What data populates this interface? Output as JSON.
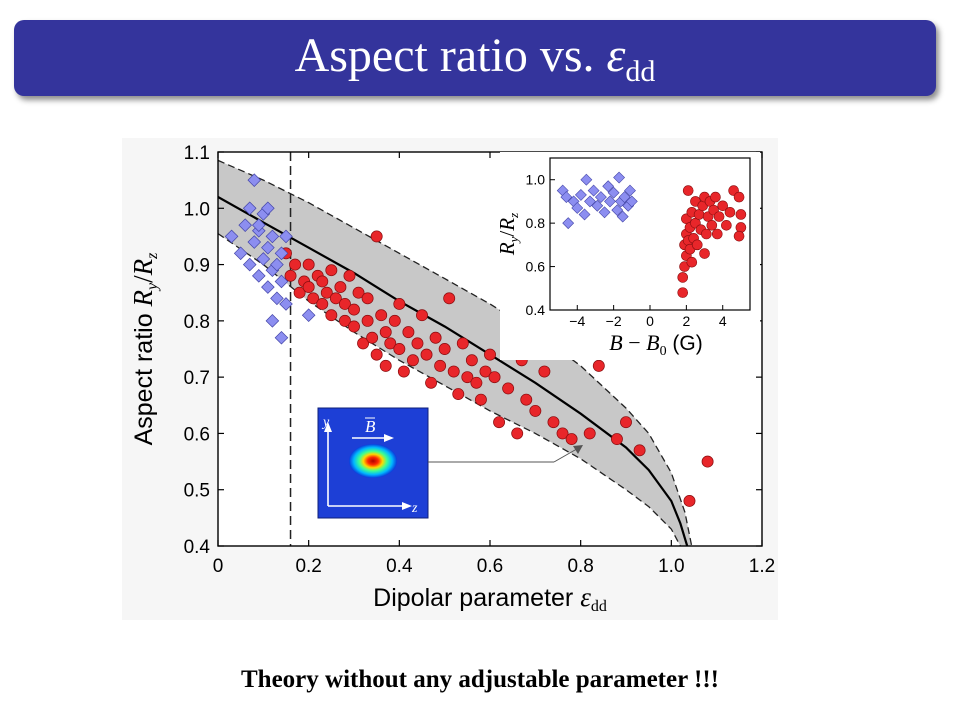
{
  "slide": {
    "title_text": "Aspect ratio vs. ",
    "title_symbol": "ε",
    "title_subscript": "dd",
    "footer": "Theory without any adjustable parameter !!!"
  },
  "colors": {
    "title_bar": "#34349c",
    "red_points": "#e8262a",
    "blue_points": "#8c8ef0",
    "band": "#c8c8c8",
    "theory_line": "#000000"
  },
  "chart_data": [
    {
      "type": "scatter",
      "xlabel_text": "Dipolar parameter ",
      "xlabel_symbol": "ε",
      "xlabel_sub": "dd",
      "ylabel_text": "Aspect ratio ",
      "ylabel_symbol": "R",
      "ylabel_sub1": "y",
      "ylabel_sep": "/",
      "ylabel_symbol2": "R",
      "ylabel_sub2": "z",
      "xlim": [
        0,
        1.2
      ],
      "ylim": [
        0.4,
        1.1
      ],
      "xticks": [
        "0",
        "0.2",
        "0.4",
        "0.6",
        "0.8",
        "1.0",
        "1.2"
      ],
      "yticks": [
        "0.4",
        "0.5",
        "0.6",
        "0.7",
        "0.8",
        "0.9",
        "1.0",
        "1.1"
      ],
      "vline_x": 0.16,
      "theory_curve": [
        [
          0,
          1.02
        ],
        [
          0.1,
          0.975
        ],
        [
          0.2,
          0.93
        ],
        [
          0.3,
          0.885
        ],
        [
          0.4,
          0.835
        ],
        [
          0.5,
          0.79
        ],
        [
          0.6,
          0.74
        ],
        [
          0.7,
          0.69
        ],
        [
          0.8,
          0.635
        ],
        [
          0.9,
          0.575
        ],
        [
          0.95,
          0.535
        ],
        [
          1.0,
          0.48
        ],
        [
          1.02,
          0.44
        ],
        [
          1.035,
          0.4
        ]
      ],
      "band_upper": [
        [
          0,
          1.085
        ],
        [
          0.1,
          1.05
        ],
        [
          0.2,
          1.01
        ],
        [
          0.3,
          0.965
        ],
        [
          0.4,
          0.92
        ],
        [
          0.5,
          0.875
        ],
        [
          0.6,
          0.83
        ],
        [
          0.7,
          0.78
        ],
        [
          0.8,
          0.72
        ],
        [
          0.9,
          0.645
        ],
        [
          0.95,
          0.6
        ],
        [
          1.0,
          0.53
        ],
        [
          1.03,
          0.46
        ],
        [
          1.045,
          0.4
        ]
      ],
      "band_lower": [
        [
          0,
          0.955
        ],
        [
          0.1,
          0.9
        ],
        [
          0.2,
          0.835
        ],
        [
          0.3,
          0.78
        ],
        [
          0.4,
          0.73
        ],
        [
          0.5,
          0.685
        ],
        [
          0.6,
          0.64
        ],
        [
          0.7,
          0.6
        ],
        [
          0.8,
          0.555
        ],
        [
          0.9,
          0.5
        ],
        [
          0.95,
          0.47
        ],
        [
          1.0,
          0.43
        ],
        [
          1.02,
          0.4
        ]
      ],
      "series": [
        {
          "marker": "circle",
          "points": [
            [
              0.15,
              0.92
            ],
            [
              0.16,
              0.88
            ],
            [
              0.17,
              0.9
            ],
            [
              0.18,
              0.85
            ],
            [
              0.19,
              0.87
            ],
            [
              0.2,
              0.86
            ],
            [
              0.2,
              0.9
            ],
            [
              0.21,
              0.84
            ],
            [
              0.22,
              0.88
            ],
            [
              0.23,
              0.83
            ],
            [
              0.23,
              0.87
            ],
            [
              0.24,
              0.85
            ],
            [
              0.25,
              0.81
            ],
            [
              0.25,
              0.89
            ],
            [
              0.26,
              0.84
            ],
            [
              0.27,
              0.86
            ],
            [
              0.28,
              0.8
            ],
            [
              0.28,
              0.83
            ],
            [
              0.29,
              0.88
            ],
            [
              0.3,
              0.82
            ],
            [
              0.3,
              0.79
            ],
            [
              0.31,
              0.85
            ],
            [
              0.32,
              0.76
            ],
            [
              0.33,
              0.8
            ],
            [
              0.33,
              0.84
            ],
            [
              0.34,
              0.77
            ],
            [
              0.35,
              0.95
            ],
            [
              0.35,
              0.74
            ],
            [
              0.36,
              0.81
            ],
            [
              0.37,
              0.78
            ],
            [
              0.37,
              0.72
            ],
            [
              0.38,
              0.76
            ],
            [
              0.39,
              0.8
            ],
            [
              0.4,
              0.83
            ],
            [
              0.4,
              0.75
            ],
            [
              0.41,
              0.71
            ],
            [
              0.42,
              0.78
            ],
            [
              0.43,
              0.73
            ],
            [
              0.44,
              0.76
            ],
            [
              0.45,
              0.81
            ],
            [
              0.46,
              0.74
            ],
            [
              0.47,
              0.69
            ],
            [
              0.48,
              0.77
            ],
            [
              0.49,
              0.72
            ],
            [
              0.5,
              0.75
            ],
            [
              0.51,
              0.84
            ],
            [
              0.52,
              0.71
            ],
            [
              0.53,
              0.67
            ],
            [
              0.54,
              0.76
            ],
            [
              0.55,
              0.7
            ],
            [
              0.56,
              0.73
            ],
            [
              0.57,
              0.69
            ],
            [
              0.58,
              0.66
            ],
            [
              0.59,
              0.71
            ],
            [
              0.6,
              0.74
            ],
            [
              0.61,
              0.7
            ],
            [
              0.62,
              0.62
            ],
            [
              0.64,
              0.68
            ],
            [
              0.66,
              0.6
            ],
            [
              0.67,
              0.73
            ],
            [
              0.68,
              0.66
            ],
            [
              0.7,
              0.64
            ],
            [
              0.72,
              0.71
            ],
            [
              0.74,
              0.62
            ],
            [
              0.76,
              0.6
            ],
            [
              0.78,
              0.59
            ],
            [
              0.82,
              0.6
            ],
            [
              0.84,
              0.72
            ],
            [
              0.88,
              0.59
            ],
            [
              0.9,
              0.62
            ],
            [
              0.93,
              0.57
            ],
            [
              1.04,
              0.48
            ],
            [
              1.08,
              0.55
            ]
          ]
        },
        {
          "marker": "diamond",
          "points": [
            [
              0.03,
              0.95
            ],
            [
              0.05,
              0.92
            ],
            [
              0.06,
              0.97
            ],
            [
              0.07,
              0.9
            ],
            [
              0.07,
              1.0
            ],
            [
              0.08,
              0.94
            ],
            [
              0.08,
              1.05
            ],
            [
              0.09,
              0.88
            ],
            [
              0.09,
              0.96
            ],
            [
              0.1,
              0.91
            ],
            [
              0.1,
              0.99
            ],
            [
              0.11,
              0.86
            ],
            [
              0.11,
              0.93
            ],
            [
              0.12,
              0.89
            ],
            [
              0.12,
              0.95
            ],
            [
              0.13,
              0.84
            ],
            [
              0.13,
              0.9
            ],
            [
              0.14,
              0.92
            ],
            [
              0.14,
              0.87
            ],
            [
              0.15,
              0.83
            ],
            [
              0.15,
              0.95
            ],
            [
              0.12,
              0.8
            ],
            [
              0.14,
              0.77
            ],
            [
              0.09,
              0.97
            ],
            [
              0.11,
              1.0
            ],
            [
              0.2,
              0.81
            ]
          ]
        }
      ]
    },
    {
      "type": "scatter",
      "xlabel_symbol": "B",
      "xlabel_minus": "−",
      "xlabel_symbol2": "B",
      "xlabel_sub": "0",
      "xlabel_unit": "(G)",
      "ylabel_symbol": "R",
      "ylabel_sub1": "y",
      "ylabel_sep": "/",
      "ylabel_symbol2": "R",
      "ylabel_sub2": "z",
      "xlim": [
        -5.5,
        5.5
      ],
      "ylim": [
        0.4,
        1.1
      ],
      "xticks": [
        "−4",
        "−2",
        "0",
        "2",
        "4"
      ],
      "yticks": [
        "0.4",
        "0.6",
        "0.8",
        "1.0"
      ],
      "series": [
        {
          "marker": "diamond",
          "points": [
            [
              -4.8,
              0.95
            ],
            [
              -4.6,
              0.92
            ],
            [
              -4.5,
              0.8
            ],
            [
              -4.2,
              0.9
            ],
            [
              -4.0,
              0.87
            ],
            [
              -3.8,
              0.93
            ],
            [
              -3.6,
              0.84
            ],
            [
              -3.5,
              1.0
            ],
            [
              -3.3,
              0.9
            ],
            [
              -3.1,
              0.95
            ],
            [
              -2.9,
              0.88
            ],
            [
              -2.7,
              0.92
            ],
            [
              -2.5,
              0.85
            ],
            [
              -2.3,
              0.97
            ],
            [
              -2.2,
              0.9
            ],
            [
              -2.0,
              0.94
            ],
            [
              -1.8,
              0.86
            ],
            [
              -1.7,
              1.01
            ],
            [
              -1.6,
              0.9
            ],
            [
              -1.5,
              0.83
            ],
            [
              -1.4,
              0.92
            ],
            [
              -1.2,
              0.88
            ],
            [
              -1.1,
              0.95
            ],
            [
              -1.0,
              0.9
            ]
          ]
        },
        {
          "marker": "circle",
          "points": [
            [
              1.8,
              0.48
            ],
            [
              1.8,
              0.55
            ],
            [
              1.9,
              0.6
            ],
            [
              1.9,
              0.7
            ],
            [
              2.0,
              0.65
            ],
            [
              2.0,
              0.75
            ],
            [
              2.0,
              0.82
            ],
            [
              2.1,
              0.72
            ],
            [
              2.1,
              0.95
            ],
            [
              2.2,
              0.68
            ],
            [
              2.2,
              0.78
            ],
            [
              2.3,
              0.85
            ],
            [
              2.4,
              0.73
            ],
            [
              2.5,
              0.8
            ],
            [
              2.5,
              0.9
            ],
            [
              2.6,
              0.7
            ],
            [
              2.7,
              0.84
            ],
            [
              2.8,
              0.77
            ],
            [
              2.9,
              0.88
            ],
            [
              3.0,
              0.92
            ],
            [
              3.1,
              0.75
            ],
            [
              3.2,
              0.83
            ],
            [
              3.3,
              0.9
            ],
            [
              3.4,
              0.79
            ],
            [
              3.5,
              0.86
            ],
            [
              3.6,
              0.92
            ],
            [
              3.7,
              0.75
            ],
            [
              3.8,
              0.83
            ],
            [
              4.0,
              0.88
            ],
            [
              4.2,
              0.79
            ],
            [
              4.4,
              0.85
            ],
            [
              4.6,
              0.95
            ],
            [
              4.9,
              0.92
            ],
            [
              5.0,
              0.78
            ],
            [
              5.0,
              0.84
            ],
            [
              4.9,
              0.74
            ],
            [
              3.0,
              0.66
            ],
            [
              2.3,
              0.62
            ]
          ]
        }
      ]
    }
  ],
  "image_labels": {
    "axis_y": "y",
    "axis_z": "z",
    "field": "B"
  }
}
